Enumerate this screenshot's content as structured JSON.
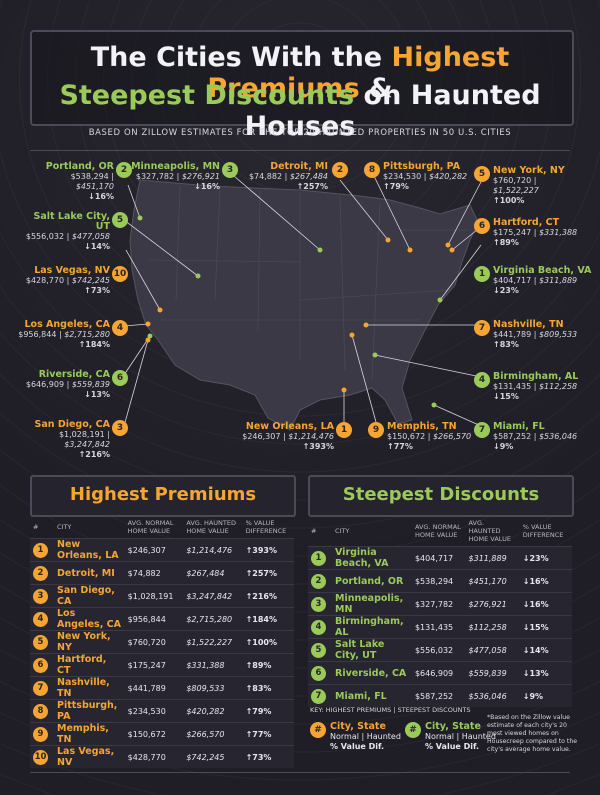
{
  "title": {
    "line1_prefix": "The Cities With the ",
    "line1_highlight": "Highest Premiums",
    "line1_suffix": " &",
    "line2_highlight": "Steepest Discounts",
    "line2_suffix": " on Haunted Houses"
  },
  "subtitle": "BASED ON ZILLOW ESTIMATES FOR THE TOP 20 HAUNTED PROPERTIES IN 50 U.S. CITIES",
  "colors": {
    "premium": "#f6a532",
    "discount": "#9acb5a",
    "background": "#1f1d26"
  },
  "map_labels": [
    {
      "rank": "2",
      "type": "g",
      "city": "Portland, OR",
      "normal": "$538,294",
      "haunted": "$451,170",
      "diff": "↓16%"
    },
    {
      "rank": "3",
      "type": "g",
      "city": "Minneapolis, MN",
      "normal": "$327,782",
      "haunted": "$276,921",
      "diff": "↓16%"
    },
    {
      "rank": "2",
      "type": "o",
      "city": "Detroit, MI",
      "normal": "$74,882",
      "haunted": "$267,484",
      "diff": "↑257%"
    },
    {
      "rank": "8",
      "type": "o",
      "city": "Pittsburgh, PA",
      "normal": "$234,530",
      "haunted": "$420,282",
      "diff": "↑79%"
    },
    {
      "rank": "5",
      "type": "o",
      "city": "New York, NY",
      "normal": "$760,720",
      "haunted": "$1,522,227",
      "diff": "↑100%"
    },
    {
      "rank": "5",
      "type": "g",
      "city": "Salt Lake City, UT",
      "normal": "$556,032",
      "haunted": "$477,058",
      "diff": "↓14%"
    },
    {
      "rank": "6",
      "type": "o",
      "city": "Hartford, CT",
      "normal": "$175,247",
      "haunted": "$331,388",
      "diff": "↑89%"
    },
    {
      "rank": "10",
      "type": "o",
      "city": "Las Vegas, NV",
      "normal": "$428,770",
      "haunted": "$742,245",
      "diff": "↑73%"
    },
    {
      "rank": "1",
      "type": "g",
      "city": "Virginia Beach, VA",
      "normal": "$404,717",
      "haunted": "$311,889",
      "diff": "↓23%"
    },
    {
      "rank": "4",
      "type": "o",
      "city": "Los Angeles, CA",
      "normal": "$956,844",
      "haunted": "$2,715,280",
      "diff": "↑184%"
    },
    {
      "rank": "7",
      "type": "o",
      "city": "Nashville, TN",
      "normal": "$441,789",
      "haunted": "$809,533",
      "diff": "↑83%"
    },
    {
      "rank": "6",
      "type": "g",
      "city": "Riverside, CA",
      "normal": "$646,909",
      "haunted": "$559,839",
      "diff": "↓13%"
    },
    {
      "rank": "4",
      "type": "g",
      "city": "Birmingham, AL",
      "normal": "$131,435",
      "haunted": "$112,258",
      "diff": "↓15%"
    },
    {
      "rank": "3",
      "type": "o",
      "city": "San Diego, CA",
      "normal": "$1,028,191",
      "haunted": "$3,247,842",
      "diff": "↑216%"
    },
    {
      "rank": "1",
      "type": "o",
      "city": "New Orleans, LA",
      "normal": "$246,307",
      "haunted": "$1,214,476",
      "diff": "↑393%"
    },
    {
      "rank": "9",
      "type": "o",
      "city": "Memphis, TN",
      "normal": "$150,672",
      "haunted": "$266,570",
      "diff": "↑77%"
    },
    {
      "rank": "7",
      "type": "g",
      "city": "Miami, FL",
      "normal": "$587,252",
      "haunted": "$536,046",
      "diff": "↓9%"
    }
  ],
  "premiums": {
    "heading": "Highest Premiums",
    "columns": [
      "#",
      "CITY",
      "AVG. NORMAL HOME VALUE",
      "AVG. HAUNTED HOME VALUE",
      "% VALUE DIFFERENCE"
    ],
    "rows": [
      {
        "rank": "1",
        "city": "New Orleans, LA",
        "normal": "$246,307",
        "haunted": "$1,214,476",
        "diff": "↑393%"
      },
      {
        "rank": "2",
        "city": "Detroit, MI",
        "normal": "$74,882",
        "haunted": "$267,484",
        "diff": "↑257%"
      },
      {
        "rank": "3",
        "city": "San Diego, CA",
        "normal": "$1,028,191",
        "haunted": "$3,247,842",
        "diff": "↑216%"
      },
      {
        "rank": "4",
        "city": "Los Angeles, CA",
        "normal": "$956,844",
        "haunted": "$2,715,280",
        "diff": "↑184%"
      },
      {
        "rank": "5",
        "city": "New York, NY",
        "normal": "$760,720",
        "haunted": "$1,522,227",
        "diff": "↑100%"
      },
      {
        "rank": "6",
        "city": "Hartford, CT",
        "normal": "$175,247",
        "haunted": "$331,388",
        "diff": "↑89%"
      },
      {
        "rank": "7",
        "city": "Nashville, TN",
        "normal": "$441,789",
        "haunted": "$809,533",
        "diff": "↑83%"
      },
      {
        "rank": "8",
        "city": "Pittsburgh, PA",
        "normal": "$234,530",
        "haunted": "$420,282",
        "diff": "↑79%"
      },
      {
        "rank": "9",
        "city": "Memphis, TN",
        "normal": "$150,672",
        "haunted": "$266,570",
        "diff": "↑77%"
      },
      {
        "rank": "10",
        "city": "Las Vegas, NV",
        "normal": "$428,770",
        "haunted": "$742,245",
        "diff": "↑73%"
      }
    ]
  },
  "discounts": {
    "heading": "Steepest Discounts",
    "columns": [
      "#",
      "CITY",
      "AVG. NORMAL HOME VALUE",
      "AVG. HAUNTED HOME VALUE",
      "% VALUE DIFFERENCE"
    ],
    "rows": [
      {
        "rank": "1",
        "city": "Virginia Beach, VA",
        "normal": "$404,717",
        "haunted": "$311,889",
        "diff": "↓23%"
      },
      {
        "rank": "2",
        "city": "Portland, OR",
        "normal": "$538,294",
        "haunted": "$451,170",
        "diff": "↓16%"
      },
      {
        "rank": "3",
        "city": "Minneapolis, MN",
        "normal": "$327,782",
        "haunted": "$276,921",
        "diff": "↓16%"
      },
      {
        "rank": "4",
        "city": "Birmingham, AL",
        "normal": "$131,435",
        "haunted": "$112,258",
        "diff": "↓15%"
      },
      {
        "rank": "5",
        "city": "Salt Lake City, UT",
        "normal": "$556,032",
        "haunted": "$477,058",
        "diff": "↓14%"
      },
      {
        "rank": "6",
        "city": "Riverside, CA",
        "normal": "$646,909",
        "haunted": "$559,839",
        "diff": "↓13%"
      },
      {
        "rank": "7",
        "city": "Miami, FL",
        "normal": "$587,252",
        "haunted": "$536,046",
        "diff": "↓9%"
      }
    ]
  },
  "key": {
    "title": "KEY: HIGHEST PREMIUMS | STEEPEST DISCOUNTS",
    "mark": "#",
    "city": "City, State",
    "values": "Normal | Haunted",
    "diff": "% Value Dif."
  },
  "footnote": "*Based on the Zillow value estimate of each city's 20 most viewed homes on Housecreep compared to the city's average home value."
}
